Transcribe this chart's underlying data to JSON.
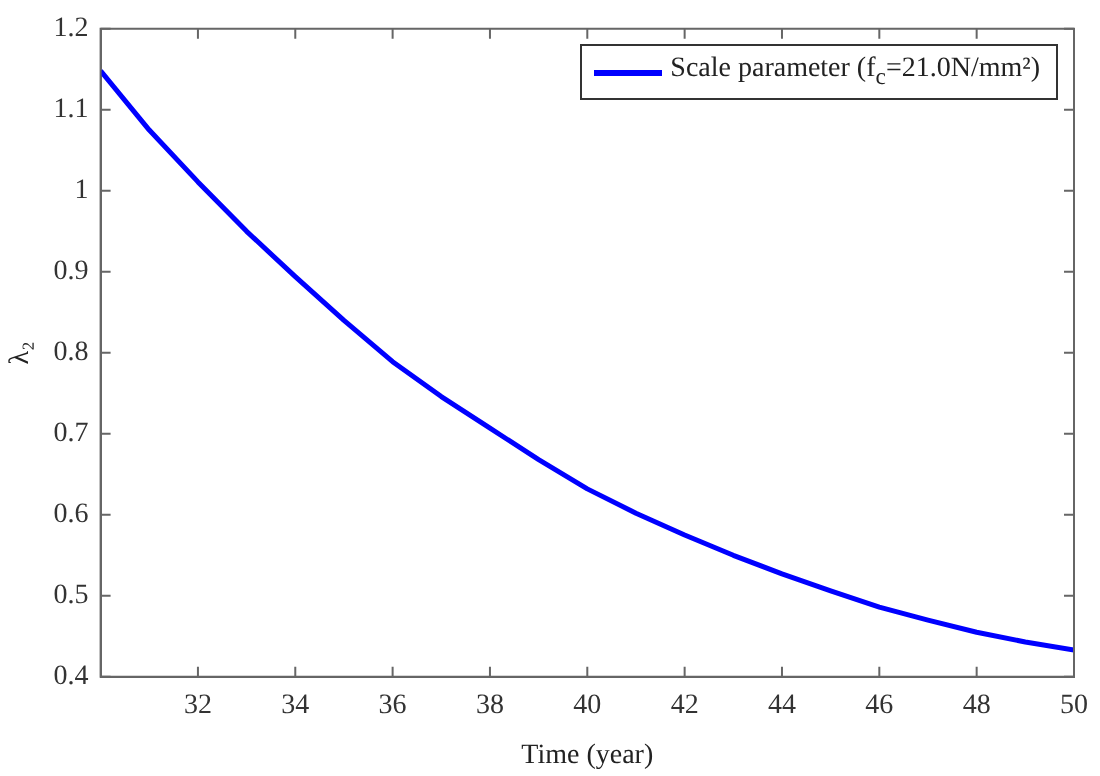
{
  "chart_data": {
    "type": "line",
    "xlabel": "Time (year)",
    "ylabel": "λ₂",
    "legend": "top right",
    "grid": false,
    "marker": "none",
    "line_style": "solid",
    "xlim": [
      30,
      50
    ],
    "xticks": [
      32,
      34,
      36,
      38,
      40,
      42,
      44,
      46,
      48,
      50
    ],
    "ylim": [
      0.4,
      1.2
    ],
    "yticks": [
      0.4,
      0.5,
      0.6,
      0.7,
      0.8,
      0.9,
      1,
      1.1,
      1.2
    ],
    "x": [
      30,
      31,
      32,
      33,
      34,
      35,
      36,
      37,
      38,
      39,
      40,
      41,
      42,
      43,
      44,
      45,
      46,
      47,
      48,
      49,
      50
    ],
    "series": [
      {
        "name": "Scale parameter (f$_{c}$=21.0N/mm²)",
        "color": "#0000ff",
        "values": [
          1.148,
          1.075,
          1.011,
          0.95,
          0.894,
          0.84,
          0.789,
          0.746,
          0.707,
          0.668,
          0.632,
          0.602,
          0.575,
          0.55,
          0.527,
          0.506,
          0.486,
          0.47,
          0.455,
          0.443,
          0.433
        ]
      }
    ]
  }
}
